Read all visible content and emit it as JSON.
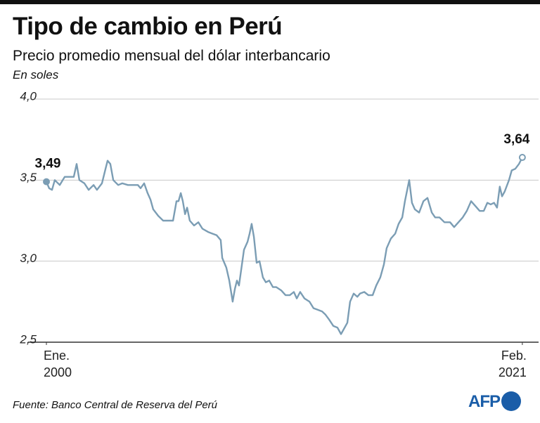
{
  "chart_data": {
    "type": "line",
    "title": "Tipo de cambio en Perú",
    "subtitle": "Precio promedio mensual del dólar interbancario",
    "y_label": "En soles",
    "source": "Fuente: Banco Central de Reserva del Perú",
    "logo": "AFP",
    "xlim": [
      1999.19,
      2021.8
    ],
    "xticks": [
      {
        "value": 2000,
        "label": "Ene.\n2000"
      },
      {
        "value": 2021.08,
        "label": "Feb.\n2021"
      }
    ],
    "ylim": [
      2.5,
      4.0
    ],
    "yticks": [
      {
        "value": 2.5,
        "label": "2,5"
      },
      {
        "value": 3.0,
        "label": "3,0"
      },
      {
        "value": 3.5,
        "label": "3,5"
      },
      {
        "value": 4.0,
        "label": "4,0"
      }
    ],
    "grid": true,
    "series": [
      {
        "color": "#7b9db4",
        "x": [
          2000,
          2000.12,
          2000.25,
          2000.37,
          2000.59,
          2000.81,
          2001.06,
          2001.21,
          2001.34,
          2001.46,
          2001.68,
          2001.87,
          2002.09,
          2002.24,
          2002.46,
          2002.62,
          2002.71,
          2002.83,
          2002.96,
          2003.18,
          2003.36,
          2003.61,
          2003.86,
          2004.05,
          2004.17,
          2004.33,
          2004.48,
          2004.61,
          2004.73,
          2004.95,
          2005.17,
          2005.42,
          2005.61,
          2005.76,
          2005.85,
          2005.95,
          2006.04,
          2006.14,
          2006.23,
          2006.35,
          2006.54,
          2006.73,
          2006.91,
          2007.16,
          2007.35,
          2007.54,
          2007.72,
          2007.79,
          2007.97,
          2008.1,
          2008.25,
          2008.35,
          2008.44,
          2008.53,
          2008.66,
          2008.75,
          2008.91,
          2009.0,
          2009.09,
          2009.19,
          2009.31,
          2009.44,
          2009.59,
          2009.72,
          2009.87,
          2010.03,
          2010.18,
          2010.4,
          2010.59,
          2010.78,
          2010.96,
          2011.09,
          2011.24,
          2011.43,
          2011.65,
          2011.83,
          2012.02,
          2012.21,
          2012.36,
          2012.52,
          2012.71,
          2012.89,
          2013.05,
          2013.17,
          2013.33,
          2013.45,
          2013.61,
          2013.77,
          2013.89,
          2014.08,
          2014.26,
          2014.45,
          2014.61,
          2014.79,
          2014.95,
          2015.07,
          2015.26,
          2015.45,
          2015.6,
          2015.76,
          2015.88,
          2016.07,
          2016.19,
          2016.32,
          2016.51,
          2016.7,
          2016.88,
          2017.07,
          2017.22,
          2017.41,
          2017.63,
          2017.88,
          2018.06,
          2018.25,
          2018.44,
          2018.62,
          2018.81,
          2019.0,
          2019.19,
          2019.37,
          2019.53,
          2019.68,
          2019.83,
          2019.96,
          2020.08,
          2020.18,
          2020.3,
          2020.49,
          2020.61,
          2020.77,
          2020.93,
          2021.08
        ],
        "values": [
          3.49,
          3.45,
          3.44,
          3.5,
          3.47,
          3.52,
          3.52,
          3.52,
          3.6,
          3.5,
          3.48,
          3.44,
          3.47,
          3.44,
          3.48,
          3.57,
          3.62,
          3.6,
          3.5,
          3.47,
          3.48,
          3.47,
          3.47,
          3.47,
          3.45,
          3.48,
          3.42,
          3.38,
          3.32,
          3.28,
          3.25,
          3.25,
          3.25,
          3.37,
          3.37,
          3.42,
          3.37,
          3.29,
          3.33,
          3.25,
          3.22,
          3.24,
          3.2,
          3.18,
          3.17,
          3.16,
          3.13,
          3.02,
          2.96,
          2.88,
          2.75,
          2.83,
          2.88,
          2.85,
          2.98,
          3.07,
          3.12,
          3.17,
          3.23,
          3.15,
          2.99,
          3.0,
          2.9,
          2.87,
          2.88,
          2.84,
          2.84,
          2.82,
          2.79,
          2.79,
          2.81,
          2.77,
          2.81,
          2.77,
          2.75,
          2.71,
          2.7,
          2.69,
          2.67,
          2.64,
          2.6,
          2.59,
          2.55,
          2.58,
          2.62,
          2.75,
          2.8,
          2.78,
          2.8,
          2.81,
          2.79,
          2.79,
          2.85,
          2.9,
          2.98,
          3.08,
          3.14,
          3.17,
          3.23,
          3.27,
          3.37,
          3.5,
          3.36,
          3.32,
          3.3,
          3.37,
          3.39,
          3.3,
          3.27,
          3.27,
          3.24,
          3.24,
          3.21,
          3.24,
          3.27,
          3.31,
          3.37,
          3.34,
          3.31,
          3.31,
          3.36,
          3.35,
          3.36,
          3.33,
          3.46,
          3.4,
          3.43,
          3.5,
          3.56,
          3.57,
          3.6,
          3.64
        ]
      }
    ],
    "annotations": [
      {
        "text": "3,49",
        "x": 2000,
        "y": 3.49
      },
      {
        "text": "3,64",
        "x": 2021.08,
        "y": 3.64
      }
    ]
  }
}
